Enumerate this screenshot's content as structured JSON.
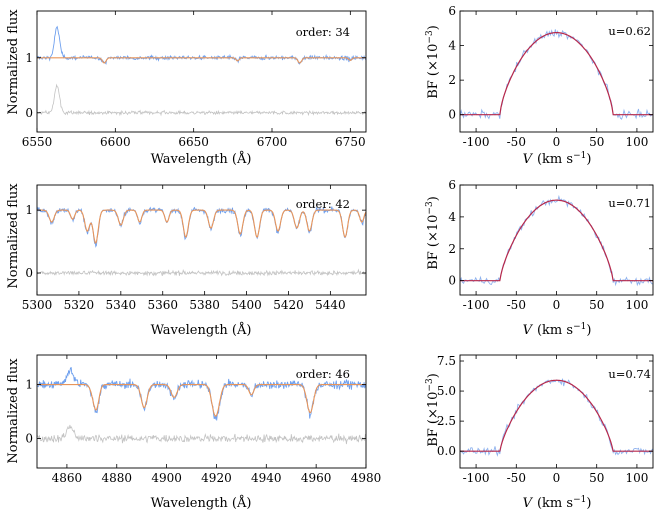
{
  "figure": {
    "left_column_ylabel": "Normalized flux",
    "left_xlabel": "Wavelength (Å)",
    "right_ylabel": "BF (×10",
    "right_ylabel_exp": "−3",
    "right_ylabel_close": ")",
    "right_xlabel_var": "V",
    "right_xlabel_unit": "(km s",
    "right_xlabel_exp": "−1",
    "right_xlabel_close": ")",
    "colors": {
      "observed": "#6fa0ee",
      "model": "#e8955a",
      "residual": "#c3c3c3",
      "broadening_model": "#b8284a",
      "broadening_obs": "#8fb2ee"
    }
  },
  "chart_data": [
    {
      "type": "line",
      "panel": "spectrum-order-34",
      "title": "",
      "annotation": "order: 34",
      "xlabel": "Wavelength (Å)",
      "ylabel": "Normalized flux",
      "xlim": [
        6550,
        6760
      ],
      "ylim": [
        -0.35,
        1.85
      ],
      "xticks": [
        6550,
        6600,
        6650,
        6700,
        6750
      ],
      "yticks": [
        0,
        1
      ],
      "series": [
        {
          "name": "observed",
          "baseline": 1.0,
          "noise": 0.035
        },
        {
          "name": "model",
          "baseline": 1.0
        },
        {
          "name": "residual",
          "baseline": 0.0,
          "noise": 0.03
        }
      ],
      "lines": [
        {
          "center": 6562.8,
          "depth": -0.55,
          "width": 1.6
        },
        {
          "center": 6592.9,
          "depth": 0.1,
          "width": 1.2
        },
        {
          "center": 6678,
          "depth": 0.06,
          "width": 1.0
        },
        {
          "center": 6717.7,
          "depth": 0.1,
          "width": 1.2
        },
        {
          "center": 6750,
          "depth": 0.05,
          "width": 1.0
        }
      ]
    },
    {
      "type": "line",
      "panel": "spectrum-order-42",
      "title": "",
      "annotation": "order: 42",
      "xlabel": "Wavelength (Å)",
      "ylabel": "Normalized flux",
      "xlim": [
        5300,
        5457
      ],
      "ylim": [
        -0.35,
        1.4
      ],
      "xticks": [
        5300,
        5320,
        5340,
        5360,
        5380,
        5400,
        5420,
        5440
      ],
      "yticks": [
        0,
        1
      ],
      "series": [
        {
          "name": "observed",
          "baseline": 1.0,
          "noise": 0.04
        },
        {
          "name": "model",
          "baseline": 1.0
        },
        {
          "name": "residual",
          "baseline": 0.0,
          "noise": 0.035
        }
      ],
      "lines": [
        {
          "center": 5307,
          "depth": 0.2,
          "width": 1.2
        },
        {
          "center": 5317,
          "depth": 0.15,
          "width": 1.0
        },
        {
          "center": 5324,
          "depth": 0.35,
          "width": 1.2
        },
        {
          "center": 5328,
          "depth": 0.55,
          "width": 1.2
        },
        {
          "center": 5340,
          "depth": 0.25,
          "width": 1.2
        },
        {
          "center": 5349,
          "depth": 0.2,
          "width": 1.0
        },
        {
          "center": 5362,
          "depth": 0.2,
          "width": 1.0
        },
        {
          "center": 5371,
          "depth": 0.45,
          "width": 1.2
        },
        {
          "center": 5383,
          "depth": 0.3,
          "width": 1.2
        },
        {
          "center": 5397,
          "depth": 0.4,
          "width": 1.2
        },
        {
          "center": 5405,
          "depth": 0.45,
          "width": 1.2
        },
        {
          "center": 5415,
          "depth": 0.35,
          "width": 1.2
        },
        {
          "center": 5424,
          "depth": 0.3,
          "width": 1.2
        },
        {
          "center": 5430,
          "depth": 0.35,
          "width": 1.2
        },
        {
          "center": 5447,
          "depth": 0.45,
          "width": 1.2
        },
        {
          "center": 5455,
          "depth": 0.2,
          "width": 1.0
        }
      ]
    },
    {
      "type": "line",
      "panel": "spectrum-order-46",
      "title": "",
      "annotation": "order: 46",
      "xlabel": "Wavelength (Å)",
      "ylabel": "Normalized flux",
      "xlim": [
        4848,
        4980
      ],
      "ylim": [
        -0.55,
        1.55
      ],
      "xticks": [
        4860,
        4880,
        4900,
        4920,
        4940,
        4960,
        4980
      ],
      "yticks": [
        0,
        1
      ],
      "series": [
        {
          "name": "observed",
          "baseline": 1.0,
          "noise": 0.08
        },
        {
          "name": "model",
          "baseline": 1.0
        },
        {
          "name": "residual",
          "baseline": 0.0,
          "noise": 0.07
        }
      ],
      "lines": [
        {
          "center": 4861.3,
          "depth": -0.25,
          "width": 1.4
        },
        {
          "center": 4871,
          "depth": 0.25,
          "width": 1.2
        },
        {
          "center": 4872,
          "depth": 0.3,
          "width": 1.0
        },
        {
          "center": 4891,
          "depth": 0.45,
          "width": 1.2
        },
        {
          "center": 4903,
          "depth": 0.25,
          "width": 1.2
        },
        {
          "center": 4919,
          "depth": 0.4,
          "width": 1.2
        },
        {
          "center": 4920.5,
          "depth": 0.35,
          "width": 1.2
        },
        {
          "center": 4934,
          "depth": 0.2,
          "width": 1.0
        },
        {
          "center": 4957.6,
          "depth": 0.55,
          "width": 1.3
        }
      ]
    },
    {
      "type": "line",
      "panel": "broadening-function-1",
      "title": "",
      "annotation": "u=0.62",
      "xlabel": "V (km s−1)",
      "ylabel": "BF (×10−3)",
      "xlim": [
        -120,
        120
      ],
      "ylim": [
        -1.0,
        6.0
      ],
      "xticks": [
        -100,
        -50,
        0,
        50,
        100
      ],
      "yticks": [
        0,
        2,
        4,
        6
      ],
      "peak": 4.75,
      "vsini": 70,
      "limb_darkening": 0.62,
      "noise": 0.22
    },
    {
      "type": "line",
      "panel": "broadening-function-2",
      "title": "",
      "annotation": "u=0.71",
      "xlabel": "V (km s−1)",
      "ylabel": "BF (×10−3)",
      "xlim": [
        -120,
        120
      ],
      "ylim": [
        -0.9,
        6.0
      ],
      "xticks": [
        -100,
        -50,
        0,
        50,
        100
      ],
      "yticks": [
        0,
        2,
        4,
        6
      ],
      "peak": 5.05,
      "vsini": 70,
      "limb_darkening": 0.71,
      "noise": 0.22
    },
    {
      "type": "line",
      "panel": "broadening-function-3",
      "title": "",
      "annotation": "u=0.74",
      "xlabel": "V (km s−1)",
      "ylabel": "BF (×10−3)",
      "xlim": [
        -120,
        120
      ],
      "ylim": [
        -1.4,
        8.0
      ],
      "xticks": [
        -100,
        -50,
        0,
        50,
        100
      ],
      "yticks": [
        0.0,
        2.5,
        5.0,
        7.5
      ],
      "ytick_labels": [
        "0.0",
        "2.5",
        "5.0",
        "7.5"
      ],
      "peak": 5.9,
      "vsini": 70,
      "limb_darkening": 0.74,
      "noise": 0.3
    }
  ]
}
